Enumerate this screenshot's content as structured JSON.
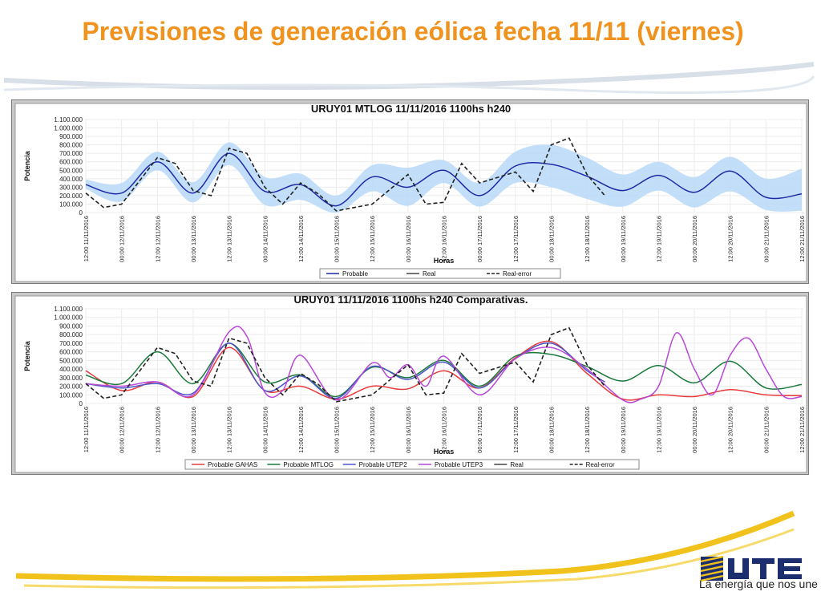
{
  "slide": {
    "title": "Previsiones de generación eólica fecha 11/11 (viernes)",
    "slogan": "La energía que nos une",
    "logo_text": "UTE",
    "colors": {
      "title": "#f0921e",
      "band": "#b8d8f8",
      "probable": "#1f2aa6"
    }
  },
  "chart_data": [
    {
      "type": "line",
      "title": "URUY01  MTLOG  11/11/2016  1100hs   h240",
      "xlabel": "Horas",
      "ylabel": "Potencia",
      "ylim": [
        0,
        1100000
      ],
      "yticks": [
        "0",
        "100.000",
        "200.000",
        "300.000",
        "400.000",
        "500.000",
        "600.000",
        "700.000",
        "800.000",
        "900.000",
        "1.000.000",
        "1.100.000"
      ],
      "x_ticks": [
        "12:00 11/11/2016",
        "00:00 12/11/2016",
        "12:00 12/11/2016",
        "00:00 13/11/2016",
        "12:00 13/11/2016",
        "00:00 14/11/2016",
        "12:00 14/11/2016",
        "00:00 15/11/2016",
        "12:00 15/11/2016",
        "00:00 16/11/2016",
        "12:00 16/11/2016",
        "00:00 17/11/2016",
        "12:00 17/11/2016",
        "00:00 18/11/2016",
        "12:00 18/11/2016",
        "00:00 19/11/2016",
        "12:00 19/11/2016",
        "00:00 20/11/2016",
        "12:00 20/11/2016",
        "00:00 21/11/2016",
        "12:00 21/11/2016"
      ],
      "x_hours_range": [
        0,
        240
      ],
      "legend_position": "bottom",
      "legend": [
        "Probable",
        "Real",
        "Real-error"
      ],
      "series": [
        {
          "name": "Probable",
          "color": "#1f2aa6",
          "style": "solid",
          "points": [
            [
              0,
              330000
            ],
            [
              12,
              230000
            ],
            [
              24,
              600000
            ],
            [
              36,
              230000
            ],
            [
              48,
              700000
            ],
            [
              60,
              250000
            ],
            [
              72,
              330000
            ],
            [
              84,
              80000
            ],
            [
              96,
              420000
            ],
            [
              108,
              300000
            ],
            [
              120,
              500000
            ],
            [
              132,
              200000
            ],
            [
              144,
              550000
            ],
            [
              156,
              570000
            ],
            [
              168,
              430000
            ],
            [
              180,
              260000
            ],
            [
              192,
              440000
            ],
            [
              204,
              240000
            ],
            [
              216,
              490000
            ],
            [
              228,
              180000
            ],
            [
              240,
              220000
            ]
          ]
        },
        {
          "name": "Real-error",
          "color": "#222222",
          "style": "dashed",
          "points": [
            [
              0,
              230000
            ],
            [
              6,
              60000
            ],
            [
              12,
              100000
            ],
            [
              24,
              650000
            ],
            [
              30,
              580000
            ],
            [
              36,
              260000
            ],
            [
              42,
              200000
            ],
            [
              48,
              760000
            ],
            [
              54,
              700000
            ],
            [
              60,
              300000
            ],
            [
              66,
              100000
            ],
            [
              72,
              350000
            ],
            [
              78,
              220000
            ],
            [
              84,
              20000
            ],
            [
              96,
              100000
            ],
            [
              108,
              450000
            ],
            [
              114,
              100000
            ],
            [
              120,
              120000
            ],
            [
              126,
              580000
            ],
            [
              132,
              350000
            ],
            [
              144,
              480000
            ],
            [
              150,
              250000
            ],
            [
              156,
              800000
            ],
            [
              162,
              880000
            ],
            [
              168,
              450000
            ],
            [
              174,
              200000
            ]
          ]
        }
      ],
      "band": {
        "name": "Probable",
        "color": "#b8d8f8",
        "upper": [
          [
            0,
            390000
          ],
          [
            12,
            350000
          ],
          [
            24,
            720000
          ],
          [
            36,
            360000
          ],
          [
            48,
            830000
          ],
          [
            60,
            420000
          ],
          [
            72,
            460000
          ],
          [
            84,
            200000
          ],
          [
            96,
            560000
          ],
          [
            108,
            530000
          ],
          [
            120,
            620000
          ],
          [
            132,
            350000
          ],
          [
            144,
            720000
          ],
          [
            156,
            800000
          ],
          [
            168,
            650000
          ],
          [
            180,
            450000
          ],
          [
            192,
            600000
          ],
          [
            204,
            420000
          ],
          [
            216,
            660000
          ],
          [
            228,
            400000
          ],
          [
            240,
            520000
          ]
        ],
        "lower": [
          [
            0,
            280000
          ],
          [
            12,
            130000
          ],
          [
            24,
            500000
          ],
          [
            36,
            120000
          ],
          [
            48,
            560000
          ],
          [
            60,
            90000
          ],
          [
            72,
            150000
          ],
          [
            84,
            0
          ],
          [
            96,
            250000
          ],
          [
            108,
            80000
          ],
          [
            120,
            350000
          ],
          [
            132,
            70000
          ],
          [
            144,
            350000
          ],
          [
            156,
            300000
          ],
          [
            168,
            160000
          ],
          [
            180,
            70000
          ],
          [
            192,
            260000
          ],
          [
            204,
            60000
          ],
          [
            216,
            250000
          ],
          [
            228,
            30000
          ],
          [
            240,
            20000
          ]
        ]
      }
    },
    {
      "type": "line",
      "title": "URUY01  11/11/2016  1100hs   h240  Comparativas.",
      "xlabel": "Horas",
      "ylabel": "Potencia",
      "ylim": [
        0,
        1100000
      ],
      "yticks": [
        "0",
        "100.000",
        "200.000",
        "300.000",
        "400.000",
        "500.000",
        "600.000",
        "700.000",
        "800.000",
        "900.000",
        "1.000.000",
        "1.100.000"
      ],
      "x_ticks": [
        "12:00 11/11/2016",
        "00:00 12/11/2016",
        "12:00 12/11/2016",
        "00:00 13/11/2016",
        "12:00 13/11/2016",
        "00:00 14/11/2016",
        "12:00 14/11/2016",
        "00:00 15/11/2016",
        "12:00 15/11/2016",
        "00:00 16/11/2016",
        "12:00 16/11/2016",
        "00:00 17/11/2016",
        "12:00 17/11/2016",
        "00:00 18/11/2016",
        "12:00 18/11/2016",
        "00:00 19/11/2016",
        "12:00 19/11/2016",
        "00:00 20/11/2016",
        "12:00 20/11/2016",
        "00:00 21/11/2016",
        "12:00 21/11/2016"
      ],
      "x_hours_range": [
        0,
        240
      ],
      "legend_position": "bottom",
      "legend": [
        "Probable GAHAS",
        "Probable MTLOG",
        "Probable UTEP2",
        "Probable UTEP3",
        "Real",
        "Real-error"
      ],
      "series": [
        {
          "name": "Probable GAHAS",
          "color": "#e83b3b",
          "style": "solid",
          "points": [
            [
              0,
              380000
            ],
            [
              12,
              150000
            ],
            [
              24,
              250000
            ],
            [
              36,
              80000
            ],
            [
              48,
              650000
            ],
            [
              60,
              150000
            ],
            [
              72,
              200000
            ],
            [
              84,
              50000
            ],
            [
              96,
              200000
            ],
            [
              108,
              170000
            ],
            [
              120,
              380000
            ],
            [
              132,
              180000
            ],
            [
              144,
              530000
            ],
            [
              156,
              720000
            ],
            [
              168,
              350000
            ],
            [
              180,
              50000
            ],
            [
              192,
              100000
            ],
            [
              204,
              80000
            ],
            [
              216,
              160000
            ],
            [
              228,
              100000
            ],
            [
              240,
              90000
            ]
          ]
        },
        {
          "name": "Probable MTLOG",
          "color": "#1a7a3a",
          "style": "solid",
          "points": [
            [
              0,
              330000
            ],
            [
              12,
              230000
            ],
            [
              24,
              600000
            ],
            [
              36,
              230000
            ],
            [
              48,
              700000
            ],
            [
              60,
              250000
            ],
            [
              72,
              330000
            ],
            [
              84,
              80000
            ],
            [
              96,
              420000
            ],
            [
              108,
              300000
            ],
            [
              120,
              500000
            ],
            [
              132,
              200000
            ],
            [
              144,
              550000
            ],
            [
              156,
              570000
            ],
            [
              168,
              430000
            ],
            [
              180,
              260000
            ],
            [
              192,
              440000
            ],
            [
              204,
              240000
            ],
            [
              216,
              490000
            ],
            [
              228,
              180000
            ],
            [
              240,
              220000
            ]
          ]
        },
        {
          "name": "Probable UTEP2",
          "color": "#4b55c8",
          "style": "solid",
          "points": [
            [
              0,
              230000
            ],
            [
              12,
              180000
            ],
            [
              24,
              230000
            ],
            [
              36,
              120000
            ],
            [
              48,
              700000
            ],
            [
              60,
              150000
            ],
            [
              72,
              320000
            ],
            [
              84,
              60000
            ],
            [
              96,
              430000
            ],
            [
              108,
              280000
            ],
            [
              120,
              480000
            ],
            [
              132,
              180000
            ],
            [
              144,
              520000
            ],
            [
              156,
              700000
            ],
            [
              168,
              380000
            ],
            [
              174,
              250000
            ]
          ]
        },
        {
          "name": "Probable UTEP3",
          "color": "#b848d8",
          "style": "solid",
          "points": [
            [
              0,
              230000
            ],
            [
              12,
              200000
            ],
            [
              24,
              250000
            ],
            [
              36,
              100000
            ],
            [
              48,
              830000
            ],
            [
              54,
              780000
            ],
            [
              60,
              130000
            ],
            [
              66,
              150000
            ],
            [
              72,
              560000
            ],
            [
              84,
              40000
            ],
            [
              96,
              470000
            ],
            [
              102,
              300000
            ],
            [
              108,
              450000
            ],
            [
              114,
              200000
            ],
            [
              120,
              550000
            ],
            [
              132,
              100000
            ],
            [
              144,
              520000
            ],
            [
              156,
              650000
            ],
            [
              168,
              400000
            ],
            [
              180,
              40000
            ],
            [
              186,
              50000
            ],
            [
              192,
              200000
            ],
            [
              198,
              820000
            ],
            [
              204,
              400000
            ],
            [
              210,
              100000
            ],
            [
              216,
              560000
            ],
            [
              222,
              760000
            ],
            [
              228,
              400000
            ],
            [
              234,
              80000
            ],
            [
              240,
              80000
            ]
          ]
        },
        {
          "name": "Real-error",
          "color": "#222222",
          "style": "dashed",
          "points": [
            [
              0,
              230000
            ],
            [
              6,
              60000
            ],
            [
              12,
              100000
            ],
            [
              24,
              650000
            ],
            [
              30,
              580000
            ],
            [
              36,
              260000
            ],
            [
              42,
              200000
            ],
            [
              48,
              760000
            ],
            [
              54,
              700000
            ],
            [
              60,
              300000
            ],
            [
              66,
              100000
            ],
            [
              72,
              350000
            ],
            [
              78,
              220000
            ],
            [
              84,
              20000
            ],
            [
              96,
              100000
            ],
            [
              108,
              450000
            ],
            [
              114,
              100000
            ],
            [
              120,
              120000
            ],
            [
              126,
              580000
            ],
            [
              132,
              350000
            ],
            [
              144,
              480000
            ],
            [
              150,
              250000
            ],
            [
              156,
              800000
            ],
            [
              162,
              880000
            ],
            [
              168,
              450000
            ],
            [
              174,
              200000
            ]
          ]
        }
      ]
    }
  ]
}
